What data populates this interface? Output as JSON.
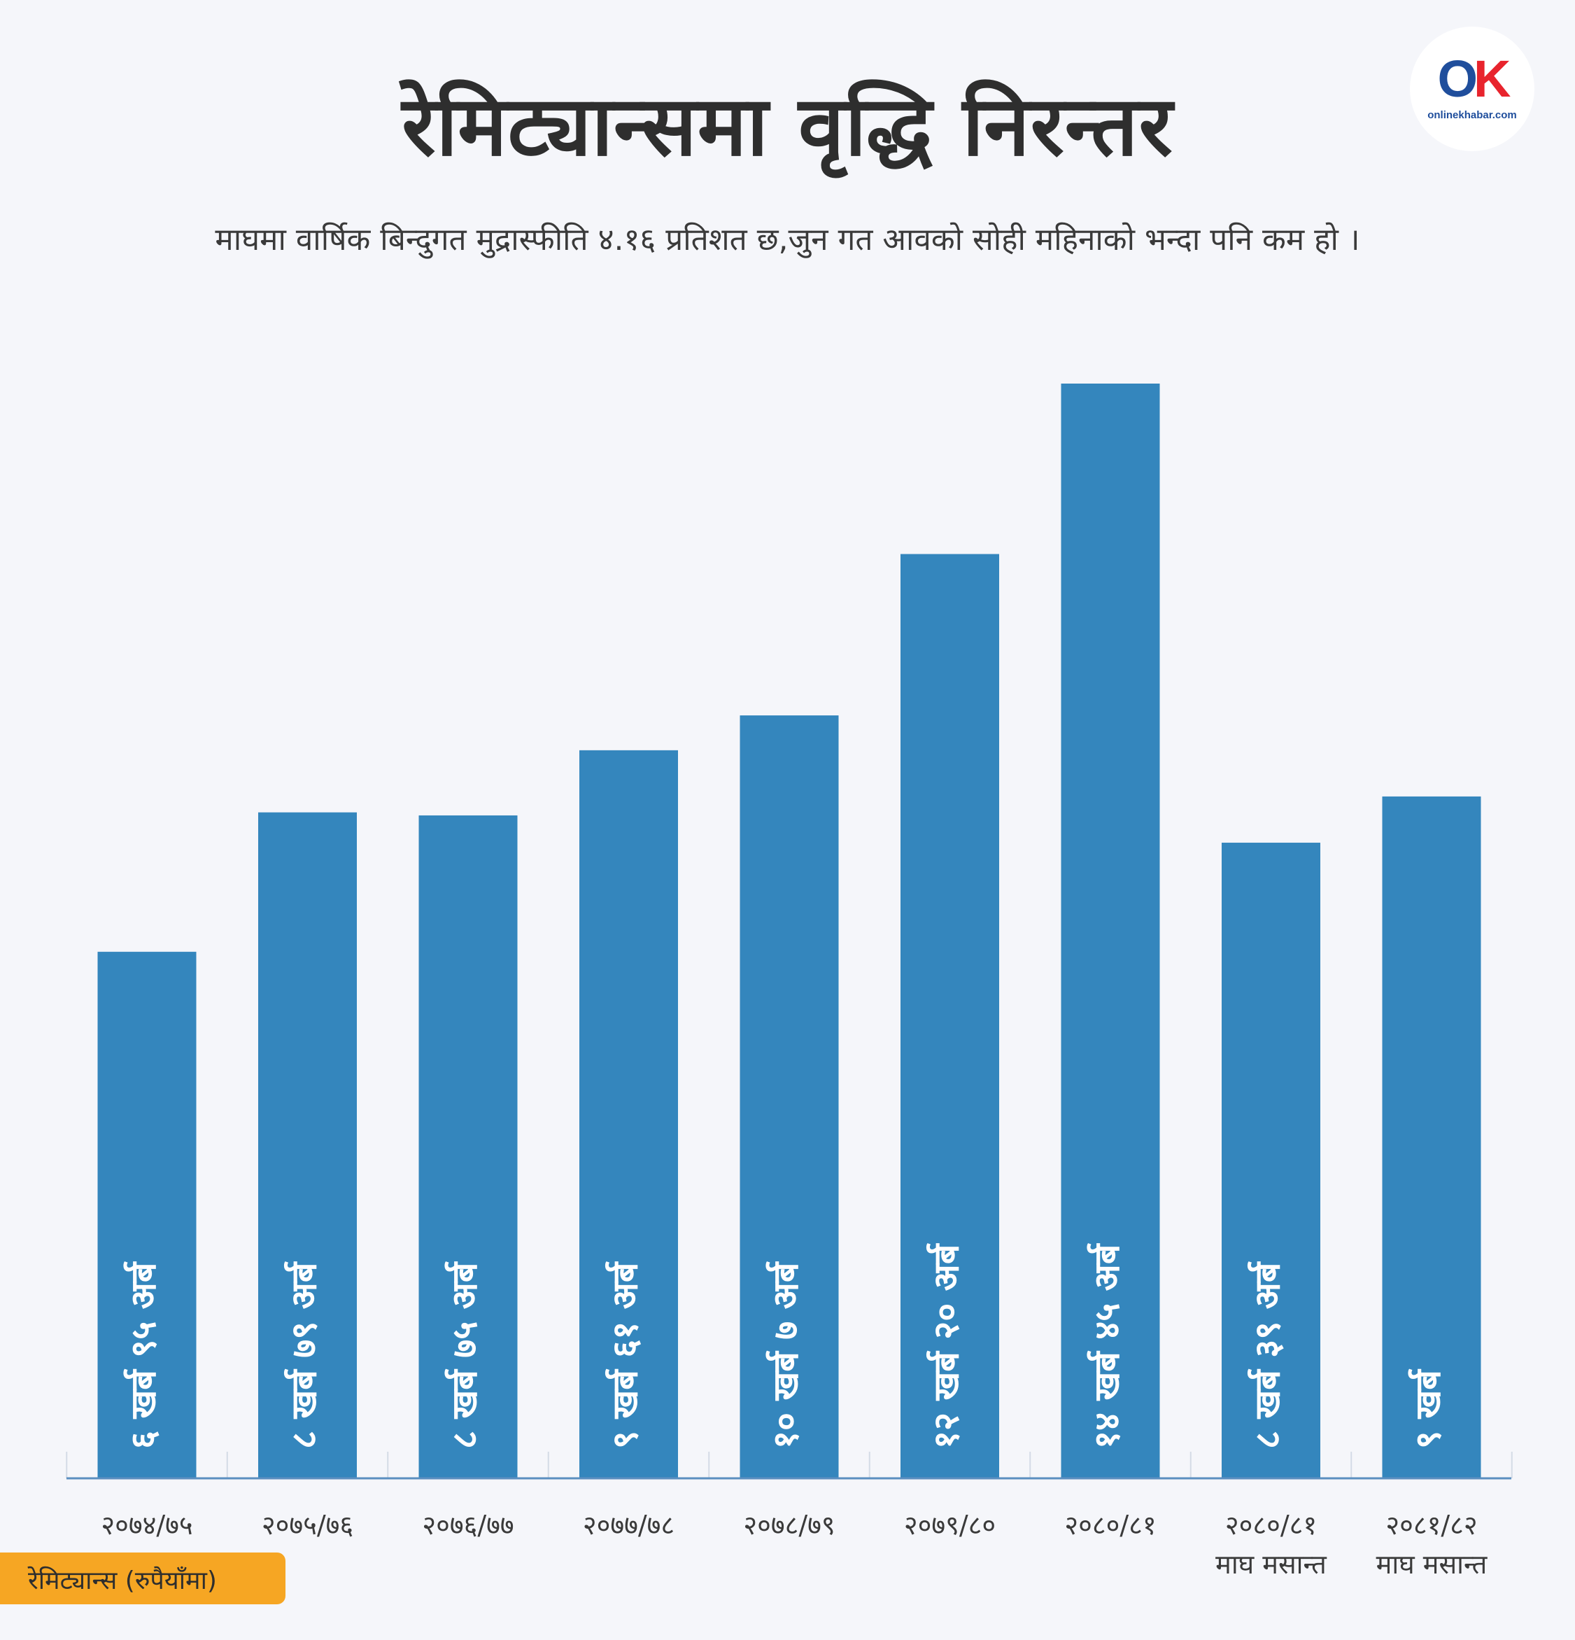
{
  "header": {
    "title": "रेमिट्यान्समा वृद्धि निरन्तर",
    "subtitle": "माघमा वार्षिक बिन्दुगत मुद्रास्फीति ४.१६ प्रतिशत छ,जुन गत आवको सोही महिनाको भन्दा पनि कम हो ।"
  },
  "logo": {
    "text": "onlinekhabar.com"
  },
  "legend": {
    "label": "रेमिट्यान्स (रुपैयाँमा)"
  },
  "colors": {
    "bar": "#3486bd",
    "axis": "#5b8fc0",
    "bar_label": "#ffffff",
    "badge": "#f6a623",
    "background": "#f5f6fa"
  },
  "chart_data": {
    "type": "bar",
    "categories": [
      "२०७४/७५",
      "२०७५/७६",
      "२०७६/७७",
      "२०७७/७८",
      "२०७८/७९",
      "२०७९/८०",
      "२०८०/८१",
      "२०८०/८१ माघ मसान्त",
      "२०८१/८२ माघ मसान्त"
    ],
    "category_lines": [
      [
        "२०७४/७५"
      ],
      [
        "२०७५/७६"
      ],
      [
        "२०७६/७७"
      ],
      [
        "२०७७/७८"
      ],
      [
        "२०७८/७९"
      ],
      [
        "२०७९/८०"
      ],
      [
        "२०८०/८१"
      ],
      [
        "२०८०/८१",
        "माघ मसान्त"
      ],
      [
        "२०८१/८२",
        "माघ मसान्त"
      ]
    ],
    "values": [
      6.95,
      8.79,
      8.75,
      9.61,
      10.07,
      12.2,
      14.45,
      8.39,
      9.0
    ],
    "unit": "खर्ब",
    "data_labels": [
      "६ खर्ब ९५ अर्ब",
      "८ खर्ब ७९ अर्ब",
      "८ खर्ब ७५ अर्ब",
      "९ खर्ब ६१ अर्ब",
      "१० खर्ब ७ अर्ब",
      "१२ खर्ब २० अर्ब",
      "१४ खर्ब ४५ अर्ब",
      "८ खर्ब ३९ अर्ब",
      "९ खर्ब"
    ],
    "ylim": [
      0,
      14.45
    ],
    "grid": false,
    "legend": "bottom-left"
  }
}
